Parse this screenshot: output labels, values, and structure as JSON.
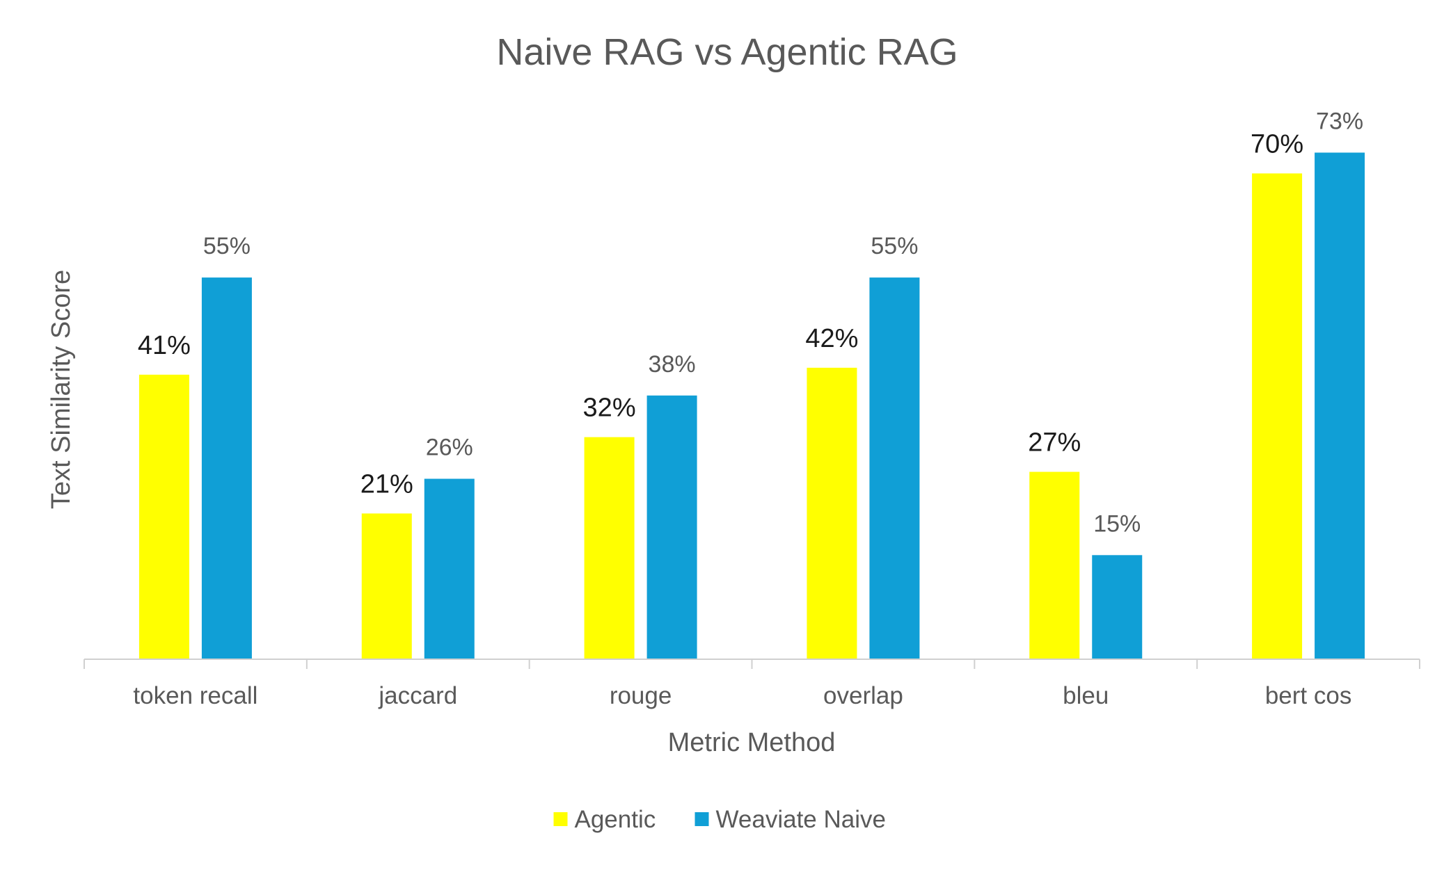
{
  "chart_data": {
    "type": "bar",
    "title": "Naive RAG vs Agentic RAG",
    "xlabel": "Metric Method",
    "ylabel": "Text Similarity Score",
    "categories": [
      "token recall",
      "jaccard",
      "rouge",
      "overlap",
      "bleu",
      "bert cos"
    ],
    "series": [
      {
        "name": "Agentic",
        "color": "#FFFF00",
        "values": [
          41,
          21,
          32,
          42,
          27,
          70
        ],
        "labels": [
          "41%",
          "21%",
          "32%",
          "42%",
          "27%",
          "70%"
        ]
      },
      {
        "name": "Weaviate Naive",
        "color": "#109FD6",
        "values": [
          55,
          26,
          38,
          55,
          15,
          73
        ],
        "labels": [
          "55%",
          "26%",
          "38%",
          "55%",
          "15%",
          "73%"
        ]
      }
    ],
    "ylim": [
      0,
      80
    ],
    "value_unit": "%",
    "y_axis_visible": false,
    "grid": false,
    "legend_position": "bottom"
  }
}
